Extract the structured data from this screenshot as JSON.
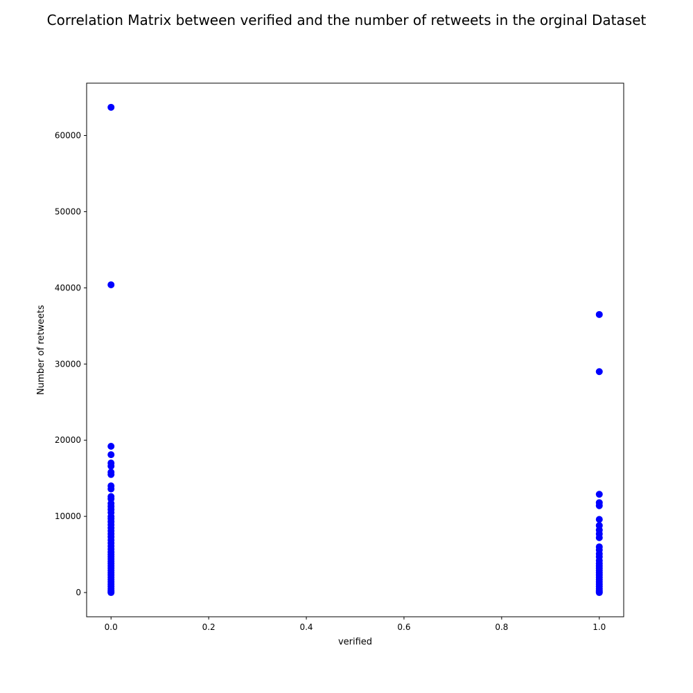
{
  "chart_data": {
    "type": "scatter",
    "title": "Correlation Matrix between verified and the number of retweets in the orginal Dataset",
    "xlabel": "verified",
    "ylabel": "Number of retweets",
    "xlim": [
      -0.05,
      1.05
    ],
    "ylim": [
      -3180,
      66870
    ],
    "x_ticks": [
      0.0,
      0.2,
      0.4,
      0.6,
      0.8,
      1.0
    ],
    "x_tick_labels": [
      "0.0",
      "0.2",
      "0.4",
      "0.6",
      "0.8",
      "1.0"
    ],
    "y_ticks": [
      0,
      10000,
      20000,
      30000,
      40000,
      50000,
      60000
    ],
    "y_tick_labels": [
      "0",
      "10000",
      "20000",
      "30000",
      "40000",
      "50000",
      "60000"
    ],
    "grid": false,
    "marker_color": "#0000ff",
    "points": [
      {
        "x": 0,
        "y": 63700
      },
      {
        "x": 0,
        "y": 40400
      },
      {
        "x": 0,
        "y": 19200
      },
      {
        "x": 0,
        "y": 18100
      },
      {
        "x": 0,
        "y": 17000
      },
      {
        "x": 0,
        "y": 16600
      },
      {
        "x": 0,
        "y": 15800
      },
      {
        "x": 0,
        "y": 15500
      },
      {
        "x": 0,
        "y": 14000
      },
      {
        "x": 0,
        "y": 13600
      },
      {
        "x": 0,
        "y": 12600
      },
      {
        "x": 0,
        "y": 12300
      },
      {
        "x": 0,
        "y": 11700
      },
      {
        "x": 0,
        "y": 11300
      },
      {
        "x": 0,
        "y": 10900
      },
      {
        "x": 0,
        "y": 10500
      },
      {
        "x": 0,
        "y": 10000
      },
      {
        "x": 0,
        "y": 9700
      },
      {
        "x": 0,
        "y": 9300
      },
      {
        "x": 0,
        "y": 8900
      },
      {
        "x": 0,
        "y": 8500
      },
      {
        "x": 0,
        "y": 8100
      },
      {
        "x": 0,
        "y": 7700
      },
      {
        "x": 0,
        "y": 7300
      },
      {
        "x": 0,
        "y": 6900
      },
      {
        "x": 0,
        "y": 6500
      },
      {
        "x": 0,
        "y": 6100
      },
      {
        "x": 0,
        "y": 5700
      },
      {
        "x": 0,
        "y": 5300
      },
      {
        "x": 0,
        "y": 5000
      },
      {
        "x": 0,
        "y": 4700
      },
      {
        "x": 0,
        "y": 4400
      },
      {
        "x": 0,
        "y": 4100
      },
      {
        "x": 0,
        "y": 3800
      },
      {
        "x": 0,
        "y": 3500
      },
      {
        "x": 0,
        "y": 3200
      },
      {
        "x": 0,
        "y": 2900
      },
      {
        "x": 0,
        "y": 2600
      },
      {
        "x": 0,
        "y": 2300
      },
      {
        "x": 0,
        "y": 2000
      },
      {
        "x": 0,
        "y": 1700
      },
      {
        "x": 0,
        "y": 1400
      },
      {
        "x": 0,
        "y": 1100
      },
      {
        "x": 0,
        "y": 800
      },
      {
        "x": 0,
        "y": 500
      },
      {
        "x": 0,
        "y": 250
      },
      {
        "x": 0,
        "y": 100
      },
      {
        "x": 0,
        "y": 0
      },
      {
        "x": 1,
        "y": 36500
      },
      {
        "x": 1,
        "y": 29000
      },
      {
        "x": 1,
        "y": 12900
      },
      {
        "x": 1,
        "y": 11800
      },
      {
        "x": 1,
        "y": 11400
      },
      {
        "x": 1,
        "y": 9600
      },
      {
        "x": 1,
        "y": 8800
      },
      {
        "x": 1,
        "y": 8200
      },
      {
        "x": 1,
        "y": 7700
      },
      {
        "x": 1,
        "y": 7200
      },
      {
        "x": 1,
        "y": 6000
      },
      {
        "x": 1,
        "y": 5600
      },
      {
        "x": 1,
        "y": 5100
      },
      {
        "x": 1,
        "y": 4700
      },
      {
        "x": 1,
        "y": 4200
      },
      {
        "x": 1,
        "y": 3800
      },
      {
        "x": 1,
        "y": 3500
      },
      {
        "x": 1,
        "y": 3200
      },
      {
        "x": 1,
        "y": 2900
      },
      {
        "x": 1,
        "y": 2600
      },
      {
        "x": 1,
        "y": 2300
      },
      {
        "x": 1,
        "y": 2000
      },
      {
        "x": 1,
        "y": 1700
      },
      {
        "x": 1,
        "y": 1400
      },
      {
        "x": 1,
        "y": 1100
      },
      {
        "x": 1,
        "y": 800
      },
      {
        "x": 1,
        "y": 500
      },
      {
        "x": 1,
        "y": 250
      },
      {
        "x": 1,
        "y": 100
      },
      {
        "x": 1,
        "y": 0
      }
    ]
  }
}
